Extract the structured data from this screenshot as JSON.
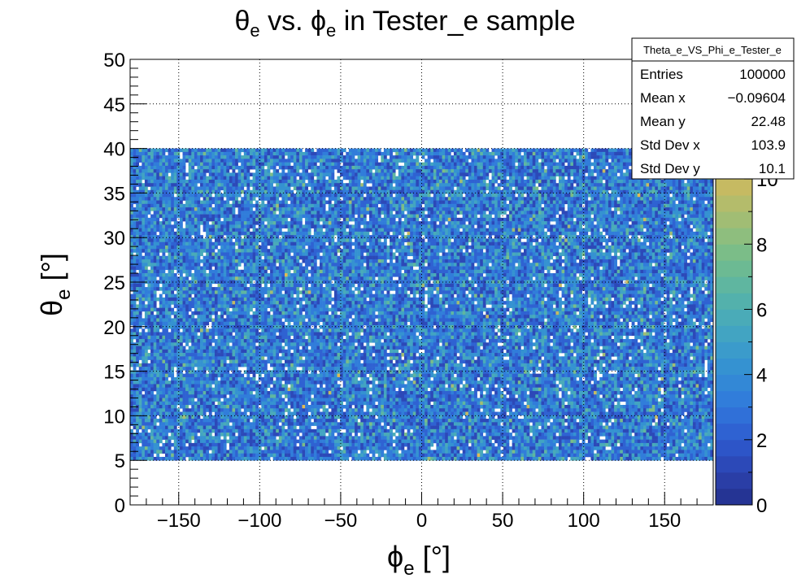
{
  "chart_data": {
    "type": "heatmap",
    "title": {
      "main": "θ",
      "sub1": "e",
      "mid": " vs.   ϕ",
      "sub2": "e",
      "tail": " in Tester_e sample"
    },
    "xlabel": {
      "main": "ϕ",
      "sub": "e",
      "unit": " [°]"
    },
    "ylabel": {
      "main": "θ",
      "sub": "e",
      "unit": " [°]"
    },
    "xlim": [
      -180,
      180
    ],
    "ylim": [
      0,
      50
    ],
    "x_ticks": [
      -150,
      -100,
      -50,
      0,
      50,
      100,
      150
    ],
    "x_tick_labels": [
      "−150",
      "−100",
      "−50",
      "0",
      "50",
      "100",
      "150"
    ],
    "y_ticks": [
      0,
      5,
      10,
      15,
      20,
      25,
      30,
      35,
      40,
      45,
      50
    ],
    "y_tick_labels": [
      "0",
      "5",
      "10",
      "15",
      "20",
      "25",
      "30",
      "35",
      "40",
      "45",
      "50"
    ],
    "grid": true,
    "filled_region": {
      "x": [
        -180,
        180
      ],
      "y": [
        5,
        40
      ]
    },
    "typical_bin_content": 3,
    "colorbar": {
      "min": 0,
      "max": 11,
      "ticks": [
        0,
        2,
        4,
        6,
        8,
        10
      ],
      "tick_labels": [
        "0",
        "2",
        "4",
        "6",
        "8",
        "10"
      ]
    },
    "stats": {
      "name": "Theta_e_VS_Phi_e_Tester_e",
      "rows": [
        {
          "label": "Entries",
          "value": "100000"
        },
        {
          "label": "Mean x",
          "value": "−0.09604"
        },
        {
          "label": "Mean y",
          "value": "22.48"
        },
        {
          "label": "Std Dev x",
          "value": "103.9"
        },
        {
          "label": "Std Dev y",
          "value": "10.1"
        }
      ]
    },
    "palette": [
      "#253494",
      "#2a3ea6",
      "#2c49b8",
      "#2d55c8",
      "#2f62d2",
      "#3070d8",
      "#317dda",
      "#3388d6",
      "#3592d1",
      "#3b9bcb",
      "#42a4c2",
      "#4aabb8",
      "#53b1ac",
      "#5fb6a0",
      "#6cba93",
      "#7bbd88",
      "#8ebe7e",
      "#a1bd74",
      "#b4bc6b",
      "#c6ba62",
      "#d6b95a",
      "#e3bb52"
    ]
  }
}
